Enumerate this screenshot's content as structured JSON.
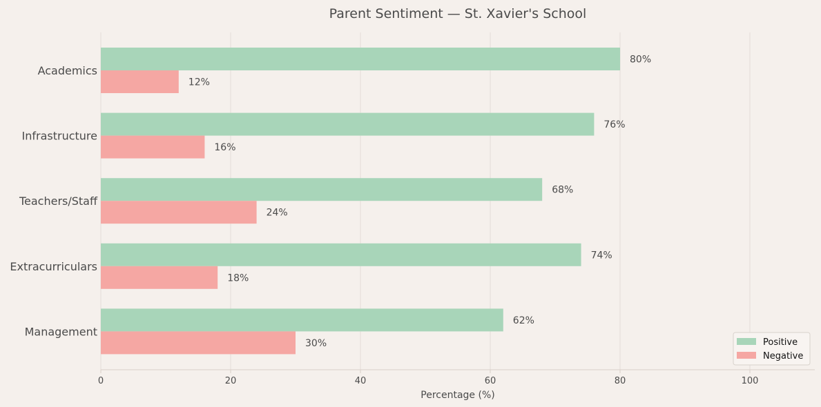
{
  "chart_data": {
    "type": "bar",
    "orientation": "horizontal",
    "title": "Parent Sentiment — St. Xavier's School",
    "xlabel": "Percentage (%)",
    "ylabel": "",
    "xlim": [
      0,
      110
    ],
    "x_ticks": [
      0,
      20,
      40,
      60,
      80,
      100
    ],
    "categories": [
      "Academics",
      "Infrastructure",
      "Teachers/Staff",
      "Extracurriculars",
      "Management"
    ],
    "series": [
      {
        "name": "Positive",
        "values": [
          80,
          76,
          68,
          74,
          62
        ],
        "color": "#a8d5b9"
      },
      {
        "name": "Negative",
        "values": [
          12,
          16,
          24,
          18,
          30
        ],
        "color": "#f5a7a3"
      }
    ],
    "value_suffix": "%",
    "grid": "vertical",
    "legend_position": "bottom-right"
  },
  "colors": {
    "background": "#f5f0ec",
    "grid": "#e4ddd7",
    "axis": "#d9cfc8",
    "text": "#4a4a4a"
  }
}
